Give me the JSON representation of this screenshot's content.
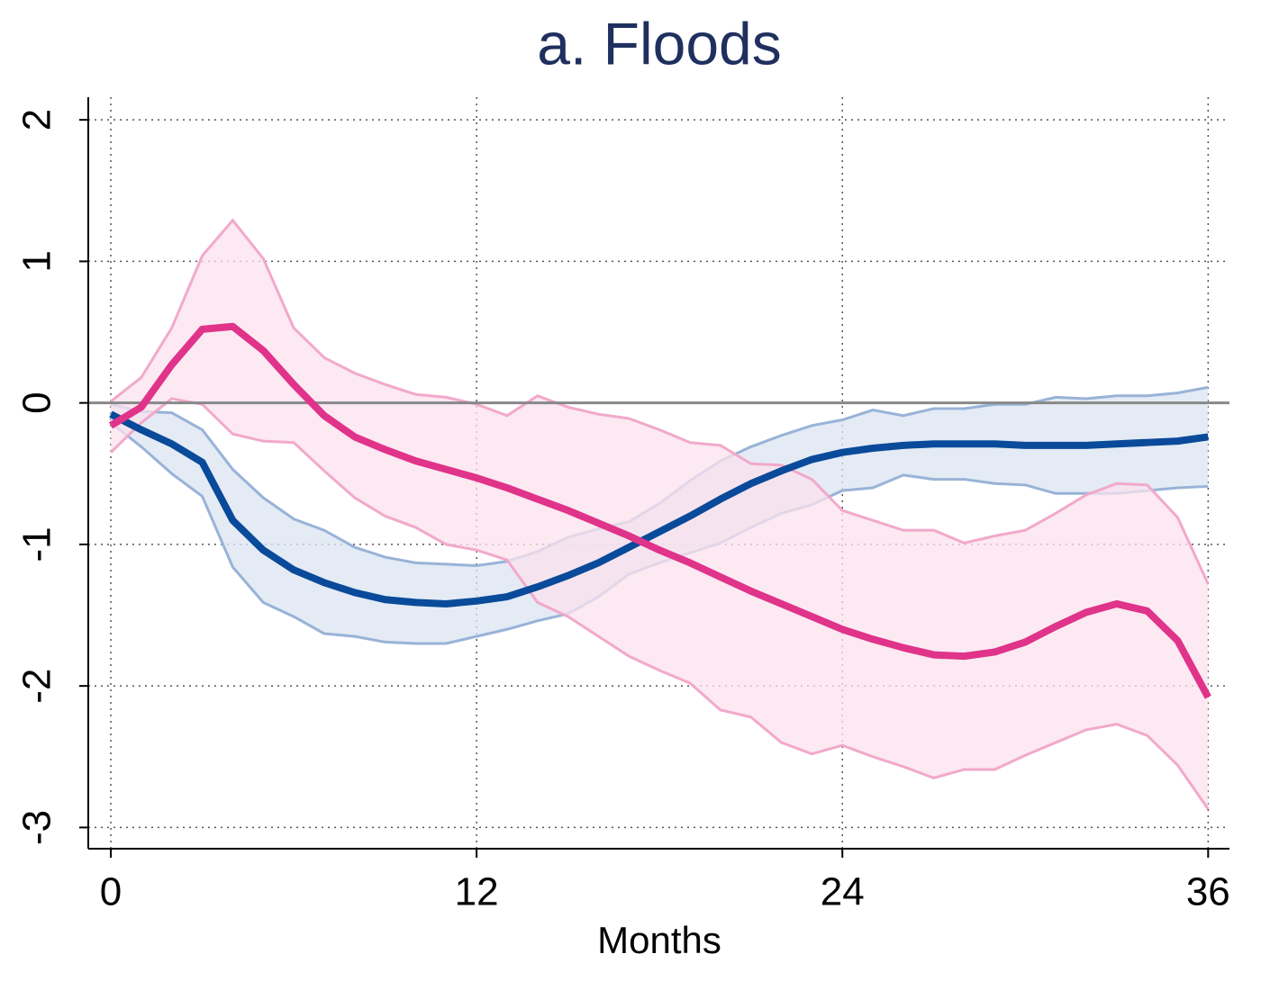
{
  "chart_data": {
    "type": "line",
    "title": "a. Floods",
    "x_label": "Months",
    "x": [
      0,
      1,
      2,
      3,
      4,
      5,
      6,
      7,
      8,
      9,
      10,
      11,
      12,
      13,
      14,
      15,
      16,
      17,
      18,
      19,
      20,
      21,
      22,
      23,
      24,
      25,
      26,
      27,
      28,
      29,
      30,
      31,
      32,
      33,
      34,
      35,
      36
    ],
    "xlim": [
      -0.74,
      36.7
    ],
    "xticks": [
      0,
      12,
      24,
      36
    ],
    "ylim": [
      -3.15,
      2.16
    ],
    "yticks": [
      -3,
      -2,
      -1,
      0,
      1,
      2
    ],
    "grid": true,
    "zero_line": true,
    "series": [
      {
        "color": "#0a4a9a",
        "band_color": "#dbe4f1",
        "band_edge_color": "#98b3d7",
        "values": [
          -0.08,
          -0.19,
          -0.29,
          -0.42,
          -0.83,
          -1.04,
          -1.18,
          -1.27,
          -1.34,
          -1.39,
          -1.41,
          -1.42,
          -1.4,
          -1.37,
          -1.3,
          -1.22,
          -1.13,
          -1.02,
          -0.91,
          -0.8,
          -0.68,
          -0.57,
          -0.48,
          -0.4,
          -0.35,
          -0.32,
          -0.3,
          -0.29,
          -0.29,
          -0.29,
          -0.3,
          -0.3,
          -0.3,
          -0.29,
          -0.28,
          -0.27,
          -0.24
        ],
        "upper": [
          -0.01,
          -0.06,
          -0.07,
          -0.19,
          -0.47,
          -0.67,
          -0.82,
          -0.9,
          -1.02,
          -1.09,
          -1.13,
          -1.14,
          -1.15,
          -1.12,
          -1.05,
          -0.95,
          -0.89,
          -0.84,
          -0.71,
          -0.55,
          -0.41,
          -0.31,
          -0.23,
          -0.16,
          -0.12,
          -0.05,
          -0.09,
          -0.04,
          -0.04,
          -0.01,
          -0.01,
          0.04,
          0.03,
          0.05,
          0.05,
          0.07,
          0.11
        ],
        "lower": [
          -0.14,
          -0.31,
          -0.5,
          -0.66,
          -1.16,
          -1.41,
          -1.51,
          -1.63,
          -1.65,
          -1.69,
          -1.7,
          -1.7,
          -1.65,
          -1.6,
          -1.54,
          -1.49,
          -1.37,
          -1.21,
          -1.13,
          -1.06,
          -0.99,
          -0.88,
          -0.78,
          -0.72,
          -0.62,
          -0.6,
          -0.51,
          -0.54,
          -0.54,
          -0.57,
          -0.58,
          -0.64,
          -0.64,
          -0.64,
          -0.62,
          -0.6,
          -0.59
        ]
      },
      {
        "color": "#e0338a",
        "band_color": "#fbe1ee",
        "band_edge_color": "#f2a9cb",
        "values": [
          -0.16,
          -0.03,
          0.27,
          0.52,
          0.54,
          0.37,
          0.13,
          -0.09,
          -0.24,
          -0.33,
          -0.41,
          -0.47,
          -0.53,
          -0.6,
          -0.68,
          -0.76,
          -0.85,
          -0.94,
          -1.04,
          -1.13,
          -1.23,
          -1.33,
          -1.42,
          -1.51,
          -1.6,
          -1.67,
          -1.73,
          -1.78,
          -1.79,
          -1.76,
          -1.69,
          -1.58,
          -1.48,
          -1.42,
          -1.47,
          -1.68,
          -2.08
        ],
        "upper": [
          0.01,
          0.18,
          0.53,
          1.04,
          1.29,
          1.02,
          0.53,
          0.32,
          0.21,
          0.13,
          0.06,
          0.04,
          -0.01,
          -0.09,
          0.05,
          -0.03,
          -0.08,
          -0.11,
          -0.19,
          -0.28,
          -0.3,
          -0.43,
          -0.44,
          -0.54,
          -0.76,
          -0.83,
          -0.9,
          -0.9,
          -0.99,
          -0.94,
          -0.9,
          -0.78,
          -0.65,
          -0.57,
          -0.58,
          -0.81,
          -1.28
        ],
        "lower": [
          -0.35,
          -0.14,
          0.03,
          -0.01,
          -0.22,
          -0.27,
          -0.28,
          -0.48,
          -0.67,
          -0.8,
          -0.88,
          -1.0,
          -1.04,
          -1.11,
          -1.41,
          -1.51,
          -1.65,
          -1.79,
          -1.89,
          -1.98,
          -2.17,
          -2.22,
          -2.4,
          -2.48,
          -2.42,
          -2.5,
          -2.57,
          -2.65,
          -2.59,
          -2.59,
          -2.49,
          -2.4,
          -2.31,
          -2.27,
          -2.35,
          -2.56,
          -2.87
        ]
      }
    ]
  }
}
